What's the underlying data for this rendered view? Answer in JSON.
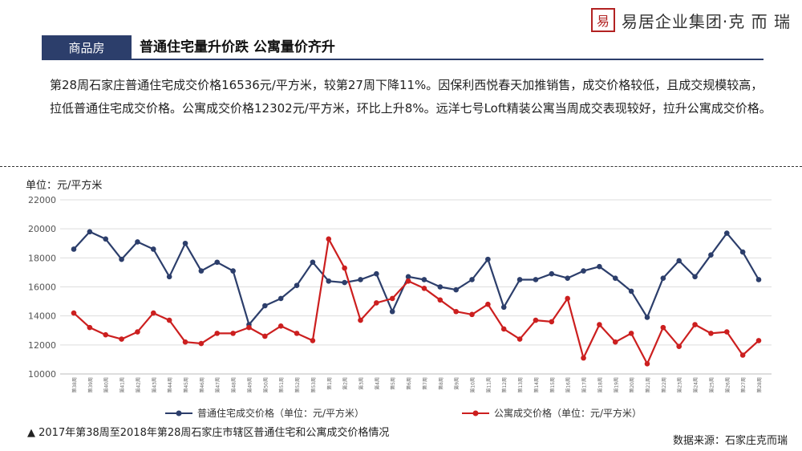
{
  "logo": {
    "seal_char": "易",
    "text": "易居企业集团·克 而 瑞"
  },
  "header": {
    "tag": "商品房",
    "title": "普通住宅量升价跌 公寓量价齐升"
  },
  "paragraph": "第28周石家庄普通住宅成交价格16536元/平方米，较第27周下降11%。因保利西悦春天加推销售，成交价格较低，且成交规模较高，拉低普通住宅成交价格。公寓成交价格12302元/平方米，环比上升8%。远洋七号Loft精装公寓当周成交表现较好，拉升公寓成交价格。",
  "caption": "▲ 2017年第38周至2018年第28周石家庄市辖区普通住宅和公寓成交价格情况",
  "source": "数据来源：石家庄克而瑞",
  "colors": {
    "residential": "#2c3e6b",
    "apartment": "#cc1f1f",
    "grid": "#dddddd",
    "axis": "#bbbbbb"
  },
  "chart_data": {
    "type": "line",
    "unit_label": "单位：元/平方米",
    "ylim": [
      10000,
      22000
    ],
    "yticks": [
      10000,
      12000,
      14000,
      16000,
      18000,
      20000,
      22000
    ],
    "grid": true,
    "legend_position": "bottom",
    "categories": [
      "第38周",
      "第39周",
      "第40周",
      "第41周",
      "第42周",
      "第43周",
      "第44周",
      "第45周",
      "第46周",
      "第47周",
      "第48周",
      "第49周",
      "第50周",
      "第51周",
      "第52周",
      "第53周",
      "第1周",
      "第2周",
      "第3周",
      "第4周",
      "第5周",
      "第6周",
      "第7周",
      "第8周",
      "第9周",
      "第10周",
      "第11周",
      "第12周",
      "第13周",
      "第14周",
      "第15周",
      "第16周",
      "第17周",
      "第18周",
      "第19周",
      "第20周",
      "第21周",
      "第22周",
      "第23周",
      "第24周",
      "第25周",
      "第26周",
      "第27周",
      "第28周"
    ],
    "series": [
      {
        "name": "普通住宅成交价格（单位：元/平方米）",
        "values": [
          18600,
          19800,
          19300,
          17900,
          19100,
          18600,
          16700,
          19000,
          17100,
          17700,
          17100,
          13400,
          14700,
          15200,
          16100,
          17700,
          16400,
          16300,
          16500,
          16900,
          14300,
          16700,
          16500,
          16000,
          15800,
          16500,
          17900,
          14600,
          16500,
          16500,
          16900,
          16600,
          17100,
          17400,
          16600,
          15700,
          13900,
          16600,
          17800,
          16700,
          18200,
          19700,
          18400,
          16500
        ]
      },
      {
        "name": "公寓成交价格（单位：元/平方米）",
        "values": [
          14200,
          13200,
          12700,
          12400,
          12900,
          14200,
          13700,
          12200,
          12100,
          12800,
          12800,
          13200,
          12600,
          13300,
          12800,
          12300,
          19300,
          17300,
          13700,
          14900,
          15200,
          16400,
          15900,
          15100,
          14300,
          14100,
          14800,
          13100,
          12400,
          13700,
          13600,
          15200,
          11100,
          13400,
          12200,
          12800,
          10700,
          13200,
          11900,
          13400,
          12800,
          12900,
          11300,
          12300
        ]
      }
    ]
  }
}
